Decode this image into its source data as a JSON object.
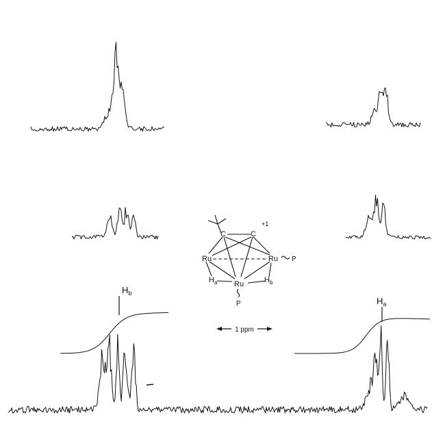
{
  "chart_data": {
    "type": "line",
    "title": "",
    "xlabel": "",
    "ylabel": "",
    "annotations": {
      "peak_b": "H",
      "peak_b_sub": "b",
      "peak_a": "H",
      "peak_a_sub": "a",
      "scale_bar": "1 ppm"
    },
    "structure": {
      "charge": "+1",
      "atom_C1": "C",
      "atom_C2": "C",
      "atom_Ru_left": "Ru",
      "atom_Ru_right": "Ru",
      "atom_Ru_bottom": "Ru",
      "ligand_P_right": "P",
      "ligand_P_bottom": "P",
      "hydride_a": "H",
      "hydride_a_sub": "a",
      "hydride_b": "H",
      "hydride_b_sub": "b"
    },
    "series": [
      {
        "role": "spectrum-Hb",
        "x": [
          -0.5,
          -0.3,
          -0.18,
          -0.1,
          -0.04,
          0.0,
          0.04,
          0.1,
          0.18,
          0.3,
          0.5
        ],
        "values": [
          0.05,
          0.1,
          0.35,
          0.85,
          0.55,
          1.0,
          0.55,
          0.85,
          0.35,
          0.1,
          0.05
        ]
      },
      {
        "role": "spectrum-Ha",
        "x": [
          -0.4,
          -0.2,
          -0.08,
          -0.03,
          0.0,
          0.03,
          0.08,
          0.2,
          0.4
        ],
        "values": [
          0.05,
          0.1,
          0.3,
          0.8,
          1.0,
          0.8,
          0.3,
          0.1,
          0.05
        ]
      },
      {
        "role": "integral-Hb",
        "x": [
          -1.0,
          -0.5,
          -0.25,
          0.0,
          0.25,
          0.5,
          1.0
        ],
        "values": [
          0.0,
          0.05,
          0.4,
          0.75,
          0.82,
          0.8,
          0.78
        ]
      },
      {
        "role": "integral-Ha",
        "x": [
          -1.0,
          -0.5,
          -0.25,
          0.0,
          0.25,
          0.5,
          1.0
        ],
        "values": [
          0.0,
          0.04,
          0.35,
          0.72,
          0.8,
          0.79,
          0.77
        ]
      },
      {
        "role": "decoupled-top-Hb",
        "x": [
          -0.8,
          -0.1,
          0.0,
          0.1,
          0.8
        ],
        "values": [
          0.05,
          0.6,
          1.0,
          0.6,
          0.05
        ]
      },
      {
        "role": "decoupled-mid-Hb",
        "x": [
          -0.4,
          -0.15,
          0.0,
          0.15,
          0.4
        ],
        "values": [
          0.05,
          0.55,
          0.9,
          0.55,
          0.05
        ]
      },
      {
        "role": "decoupled-top-Ha",
        "x": [
          -0.4,
          -0.05,
          0.0,
          0.05,
          0.4
        ],
        "values": [
          0.05,
          0.6,
          1.0,
          0.6,
          0.05
        ]
      },
      {
        "role": "decoupled-mid-Ha",
        "x": [
          -0.4,
          -0.05,
          0.0,
          0.05,
          0.4
        ],
        "values": [
          0.05,
          0.6,
          1.0,
          0.6,
          0.05
        ]
      }
    ]
  }
}
